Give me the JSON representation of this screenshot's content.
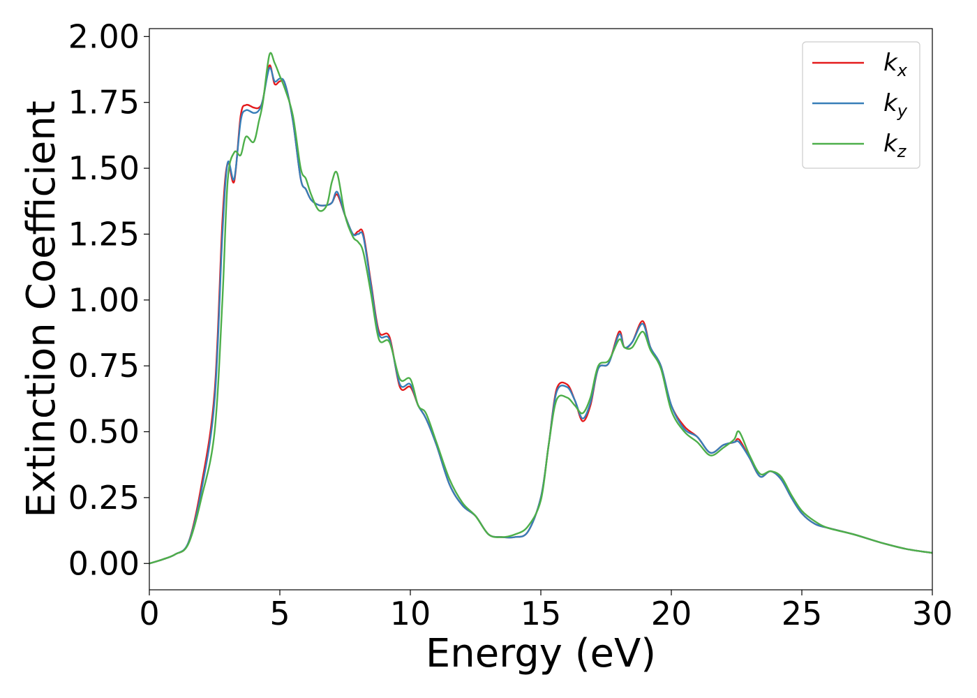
{
  "chart_data": {
    "type": "line",
    "xlabel": "Energy (eV)",
    "ylabel": "Extinction Coefficient",
    "xlim": [
      0,
      30
    ],
    "ylim": [
      -0.1,
      2.03
    ],
    "xticks": [
      0,
      5,
      10,
      15,
      20,
      25,
      30
    ],
    "xtick_labels": [
      "0",
      "5",
      "10",
      "15",
      "20",
      "25",
      "30"
    ],
    "yticks": [
      0.0,
      0.25,
      0.5,
      0.75,
      1.0,
      1.25,
      1.5,
      1.75,
      2.0
    ],
    "ytick_labels": [
      "0.00",
      "0.25",
      "0.50",
      "0.75",
      "1.00",
      "1.25",
      "1.50",
      "1.75",
      "2.00"
    ],
    "grid": false,
    "legend_position": "top-right",
    "series": [
      {
        "name": "k",
        "subscript": "x",
        "color": "#e41a1c",
        "x": [
          0,
          0.5,
          1,
          1.5,
          2,
          2.5,
          2.8,
          3,
          3.25,
          3.5,
          3.7,
          4,
          4.2,
          4.35,
          4.6,
          4.8,
          5,
          5.2,
          5.5,
          5.8,
          6,
          6.2,
          6.5,
          6.8,
          7,
          7.2,
          7.5,
          7.8,
          8,
          8.2,
          8.5,
          8.8,
          9.2,
          9.6,
          10,
          10.3,
          10.6,
          11,
          11.5,
          12,
          12.5,
          13,
          13.5,
          14,
          14.5,
          15,
          15.3,
          15.6,
          16,
          16.3,
          16.6,
          16.9,
          17.2,
          17.6,
          18,
          18.2,
          18.5,
          18.9,
          19.2,
          19.6,
          20,
          20.5,
          21,
          21.5,
          22,
          22.4,
          22.6,
          23,
          23.4,
          23.8,
          24.2,
          24.6,
          25,
          25.5,
          26,
          27,
          28,
          29,
          30
        ],
        "y": [
          0,
          0.015,
          0.035,
          0.08,
          0.3,
          0.65,
          1.3,
          1.52,
          1.45,
          1.7,
          1.74,
          1.73,
          1.73,
          1.76,
          1.89,
          1.82,
          1.83,
          1.82,
          1.68,
          1.46,
          1.42,
          1.38,
          1.36,
          1.36,
          1.37,
          1.4,
          1.32,
          1.25,
          1.26,
          1.25,
          1.06,
          0.88,
          0.86,
          0.67,
          0.67,
          0.6,
          0.55,
          0.45,
          0.3,
          0.22,
          0.18,
          0.11,
          0.1,
          0.1,
          0.12,
          0.25,
          0.45,
          0.66,
          0.68,
          0.62,
          0.54,
          0.6,
          0.74,
          0.76,
          0.88,
          0.82,
          0.84,
          0.92,
          0.82,
          0.75,
          0.6,
          0.52,
          0.48,
          0.42,
          0.45,
          0.46,
          0.47,
          0.4,
          0.33,
          0.35,
          0.32,
          0.25,
          0.19,
          0.15,
          0.135,
          0.11,
          0.08,
          0.055,
          0.04
        ]
      },
      {
        "name": "k",
        "subscript": "y",
        "color": "#377eb8",
        "x": [
          0,
          0.5,
          1,
          1.5,
          2,
          2.5,
          2.8,
          3,
          3.25,
          3.5,
          3.7,
          4,
          4.2,
          4.35,
          4.6,
          4.8,
          5,
          5.2,
          5.5,
          5.8,
          6,
          6.2,
          6.5,
          6.8,
          7,
          7.2,
          7.5,
          7.8,
          8,
          8.2,
          8.5,
          8.8,
          9.2,
          9.6,
          10,
          10.3,
          10.6,
          11,
          11.5,
          12,
          12.5,
          13,
          13.5,
          14,
          14.5,
          15,
          15.3,
          15.6,
          16,
          16.3,
          16.6,
          16.9,
          17.2,
          17.6,
          18,
          18.2,
          18.5,
          18.9,
          19.2,
          19.6,
          20,
          20.5,
          21,
          21.5,
          22,
          22.4,
          22.6,
          23,
          23.4,
          23.8,
          24.2,
          24.6,
          25,
          25.5,
          26,
          27,
          28,
          29,
          30
        ],
        "y": [
          0,
          0.015,
          0.035,
          0.08,
          0.28,
          0.62,
          1.25,
          1.52,
          1.46,
          1.68,
          1.72,
          1.71,
          1.72,
          1.76,
          1.88,
          1.83,
          1.84,
          1.82,
          1.68,
          1.46,
          1.42,
          1.38,
          1.36,
          1.36,
          1.37,
          1.41,
          1.32,
          1.25,
          1.25,
          1.24,
          1.05,
          0.87,
          0.85,
          0.68,
          0.68,
          0.6,
          0.55,
          0.45,
          0.3,
          0.22,
          0.18,
          0.11,
          0.1,
          0.1,
          0.12,
          0.25,
          0.45,
          0.65,
          0.67,
          0.62,
          0.55,
          0.61,
          0.74,
          0.76,
          0.87,
          0.82,
          0.84,
          0.91,
          0.82,
          0.75,
          0.6,
          0.51,
          0.48,
          0.42,
          0.45,
          0.46,
          0.46,
          0.4,
          0.33,
          0.35,
          0.32,
          0.25,
          0.19,
          0.15,
          0.135,
          0.11,
          0.08,
          0.055,
          0.04
        ]
      },
      {
        "name": "k",
        "subscript": "z",
        "color": "#4daf4a",
        "x": [
          0,
          0.5,
          1,
          1.5,
          2,
          2.5,
          2.8,
          3,
          3.25,
          3.5,
          3.7,
          4,
          4.2,
          4.35,
          4.6,
          4.8,
          5,
          5.2,
          5.5,
          5.8,
          6,
          6.2,
          6.5,
          6.8,
          7,
          7.2,
          7.5,
          7.8,
          8,
          8.2,
          8.5,
          8.8,
          9.2,
          9.6,
          10,
          10.3,
          10.6,
          11,
          11.5,
          12,
          12.5,
          13,
          13.5,
          14,
          14.5,
          15,
          15.3,
          15.6,
          16,
          16.3,
          16.6,
          16.9,
          17.2,
          17.6,
          18,
          18.2,
          18.5,
          18.9,
          19.2,
          19.6,
          20,
          20.5,
          21,
          21.5,
          22,
          22.4,
          22.6,
          23,
          23.4,
          23.8,
          24.2,
          24.6,
          25,
          25.5,
          26,
          27,
          28,
          29,
          30
        ],
        "y": [
          0,
          0.015,
          0.035,
          0.075,
          0.25,
          0.5,
          1.0,
          1.45,
          1.56,
          1.55,
          1.62,
          1.6,
          1.68,
          1.75,
          1.93,
          1.9,
          1.85,
          1.8,
          1.7,
          1.5,
          1.46,
          1.4,
          1.34,
          1.36,
          1.45,
          1.48,
          1.32,
          1.24,
          1.22,
          1.18,
          1.02,
          0.85,
          0.84,
          0.7,
          0.7,
          0.6,
          0.57,
          0.46,
          0.32,
          0.23,
          0.18,
          0.11,
          0.1,
          0.11,
          0.14,
          0.24,
          0.45,
          0.62,
          0.63,
          0.6,
          0.57,
          0.63,
          0.75,
          0.77,
          0.85,
          0.82,
          0.82,
          0.88,
          0.81,
          0.74,
          0.58,
          0.5,
          0.46,
          0.41,
          0.44,
          0.47,
          0.5,
          0.41,
          0.34,
          0.35,
          0.33,
          0.26,
          0.2,
          0.16,
          0.135,
          0.11,
          0.08,
          0.055,
          0.04
        ]
      }
    ]
  }
}
